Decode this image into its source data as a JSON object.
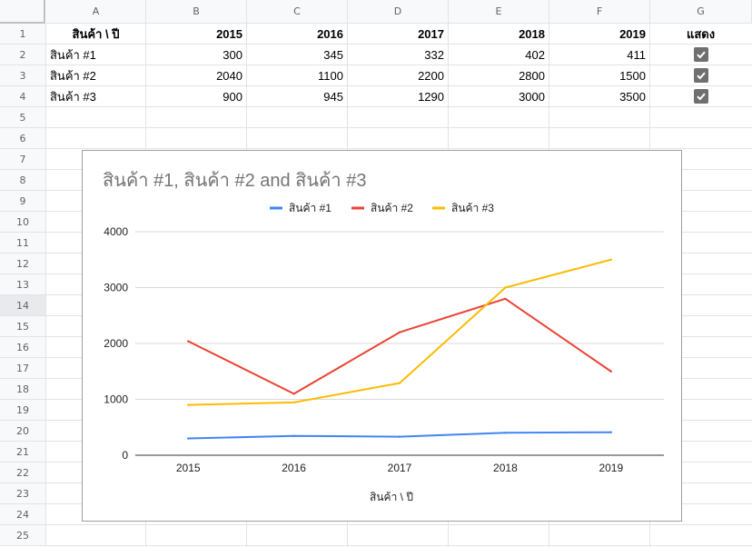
{
  "columns": [
    "A",
    "B",
    "C",
    "D",
    "E",
    "F",
    "G"
  ],
  "row_numbers": [
    "1",
    "2",
    "3",
    "4",
    "5",
    "6",
    "7",
    "8",
    "9",
    "10",
    "11",
    "12",
    "13",
    "14",
    "15",
    "16",
    "17",
    "18",
    "19",
    "20",
    "21",
    "22",
    "23",
    "24",
    "25"
  ],
  "header_row": [
    "สินค้า \\ ปี",
    "2015",
    "2016",
    "2017",
    "2018",
    "2019",
    "แสดง"
  ],
  "rows": [
    {
      "label": "สินค้า #1",
      "values": [
        "300",
        "345",
        "332",
        "402",
        "411"
      ],
      "checked": true
    },
    {
      "label": "สินค้า #2",
      "values": [
        "2040",
        "1100",
        "2200",
        "2800",
        "1500"
      ],
      "checked": true
    },
    {
      "label": "สินค้า #3",
      "values": [
        "900",
        "945",
        "1290",
        "3000",
        "3500"
      ],
      "checked": true
    }
  ],
  "chart_data": {
    "type": "line",
    "title": "สินค้า #1, สินค้า #2 and สินค้า #3",
    "xlabel": "สินค้า \\ ปี",
    "ylabel": "",
    "categories": [
      "2015",
      "2016",
      "2017",
      "2018",
      "2019"
    ],
    "ylim": [
      0,
      4000
    ],
    "yticks": [
      "0",
      "1000",
      "2000",
      "3000",
      "4000"
    ],
    "legend_position": "top",
    "grid": true,
    "series": [
      {
        "name": "สินค้า #1",
        "color": "#4285f4",
        "values": [
          300,
          345,
          332,
          402,
          411
        ]
      },
      {
        "name": "สินค้า #2",
        "color": "#ea4335",
        "values": [
          2040,
          1100,
          2200,
          2800,
          1500
        ]
      },
      {
        "name": "สินค้า #3",
        "color": "#fbbc04",
        "values": [
          900,
          945,
          1290,
          3000,
          3500
        ]
      }
    ]
  }
}
